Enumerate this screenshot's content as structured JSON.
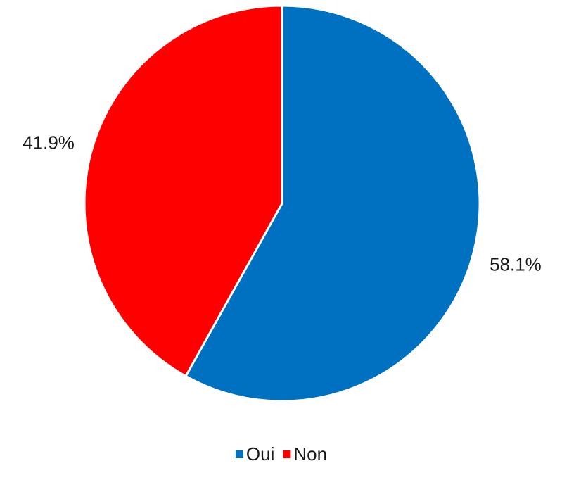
{
  "chart_data": {
    "type": "pie",
    "title": "",
    "slices": [
      {
        "name": "Oui",
        "value": 58.1,
        "label": "58.1%",
        "color": "#0070C0"
      },
      {
        "name": "Non",
        "value": 41.9,
        "label": "41.9%",
        "color": "#FF0000"
      }
    ],
    "legend_placement": "bottom",
    "start_angle": "12 o'clock",
    "direction": "clockwise"
  }
}
